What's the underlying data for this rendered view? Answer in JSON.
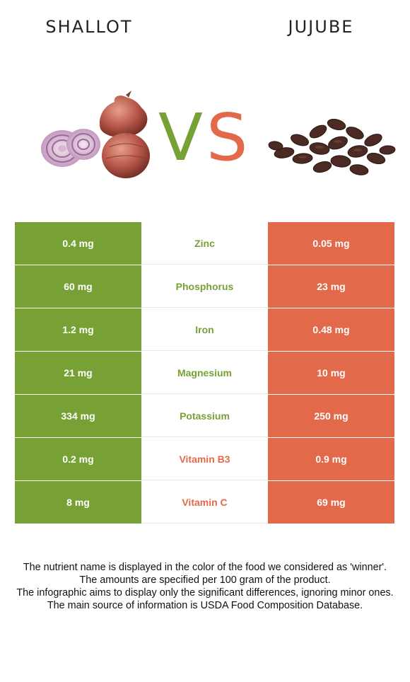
{
  "left_food": {
    "name": "SHALLOT",
    "color": "#77a135"
  },
  "right_food": {
    "name": "JUJUBE",
    "color": "#e2694a"
  },
  "vs": {
    "v": "V",
    "s": "S"
  },
  "rows": [
    {
      "left": "0.4 mg",
      "nutrient": "Zinc",
      "right": "0.05 mg",
      "winner": "left"
    },
    {
      "left": "60 mg",
      "nutrient": "Phosphorus",
      "right": "23 mg",
      "winner": "left"
    },
    {
      "left": "1.2 mg",
      "nutrient": "Iron",
      "right": "0.48 mg",
      "winner": "left"
    },
    {
      "left": "21 mg",
      "nutrient": "Magnesium",
      "right": "10 mg",
      "winner": "left"
    },
    {
      "left": "334 mg",
      "nutrient": "Potassium",
      "right": "250 mg",
      "winner": "left"
    },
    {
      "left": "0.2 mg",
      "nutrient": "Vitamin B3",
      "right": "0.9 mg",
      "winner": "right"
    },
    {
      "left": "8 mg",
      "nutrient": "Vitamin C",
      "right": "69 mg",
      "winner": "right"
    }
  ],
  "notes": [
    "The nutrient name is displayed in the color of the food we considered as 'winner'.",
    "The amounts are specified per 100 gram of the product.",
    "The infographic aims to display only the significant differences, ignoring minor ones.",
    "The main source of information is USDA Food Composition Database."
  ]
}
